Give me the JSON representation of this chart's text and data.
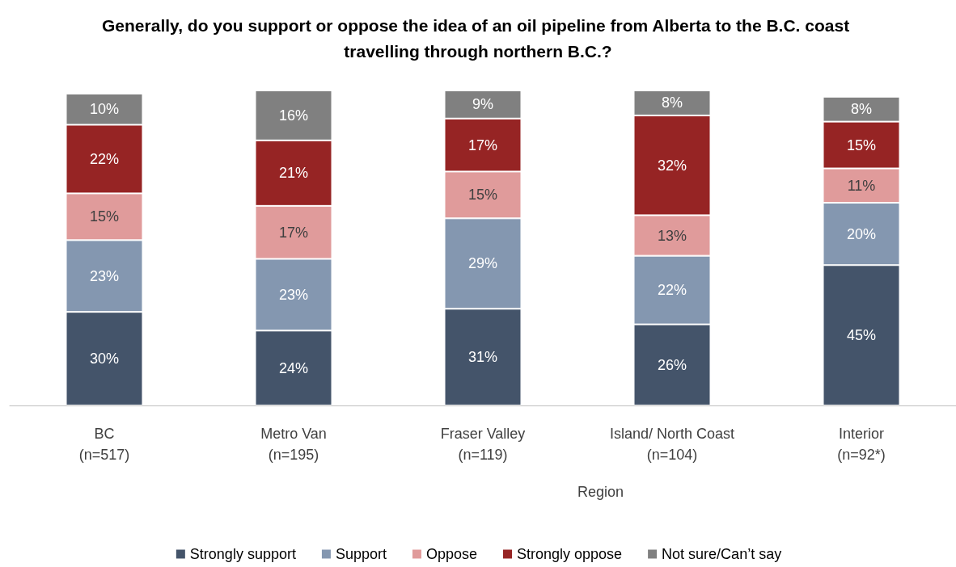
{
  "chart_data": {
    "type": "bar",
    "stacked": true,
    "legend": "bottom",
    "title": "Generally, do you support or oppose the idea of an oil pipeline from Alberta to the B.C. coast travelling through northern B.C.?",
    "categories": [
      "BC\n(n=517)",
      "Metro Van\n(n=195)",
      "Fraser Valley\n(n=119)",
      "Island/ North Coast\n(n=104)",
      "Interior\n(n=92*)"
    ],
    "series": [
      {
        "name": "Strongly support",
        "color": "#44546a",
        "values": [
          30,
          24,
          31,
          26,
          45
        ],
        "value_labels": [
          "30%",
          "24%",
          "31%",
          "26%",
          "45%"
        ]
      },
      {
        "name": "Support",
        "color": "#8497b0",
        "values": [
          23,
          23,
          29,
          22,
          20
        ],
        "value_labels": [
          "23%",
          "23%",
          "29%",
          "22%",
          "20%"
        ]
      },
      {
        "name": "Oppose",
        "color": "#e09b9b",
        "values": [
          15,
          17,
          15,
          13,
          11
        ],
        "value_labels": [
          "15%",
          "17%",
          "15%",
          "13%",
          "11%"
        ]
      },
      {
        "name": "Strongly oppose",
        "color": "#962424",
        "values": [
          22,
          21,
          17,
          32,
          15
        ],
        "value_labels": [
          "22%",
          "21%",
          "17%",
          "32%",
          "15%"
        ]
      },
      {
        "name": "Not sure/Can’t say",
        "color": "#808080",
        "values": [
          10,
          16,
          9,
          8,
          8
        ],
        "value_labels": [
          "10%",
          "16%",
          "9%",
          "8%",
          "8%"
        ]
      }
    ],
    "annotations": [
      "Region"
    ]
  }
}
